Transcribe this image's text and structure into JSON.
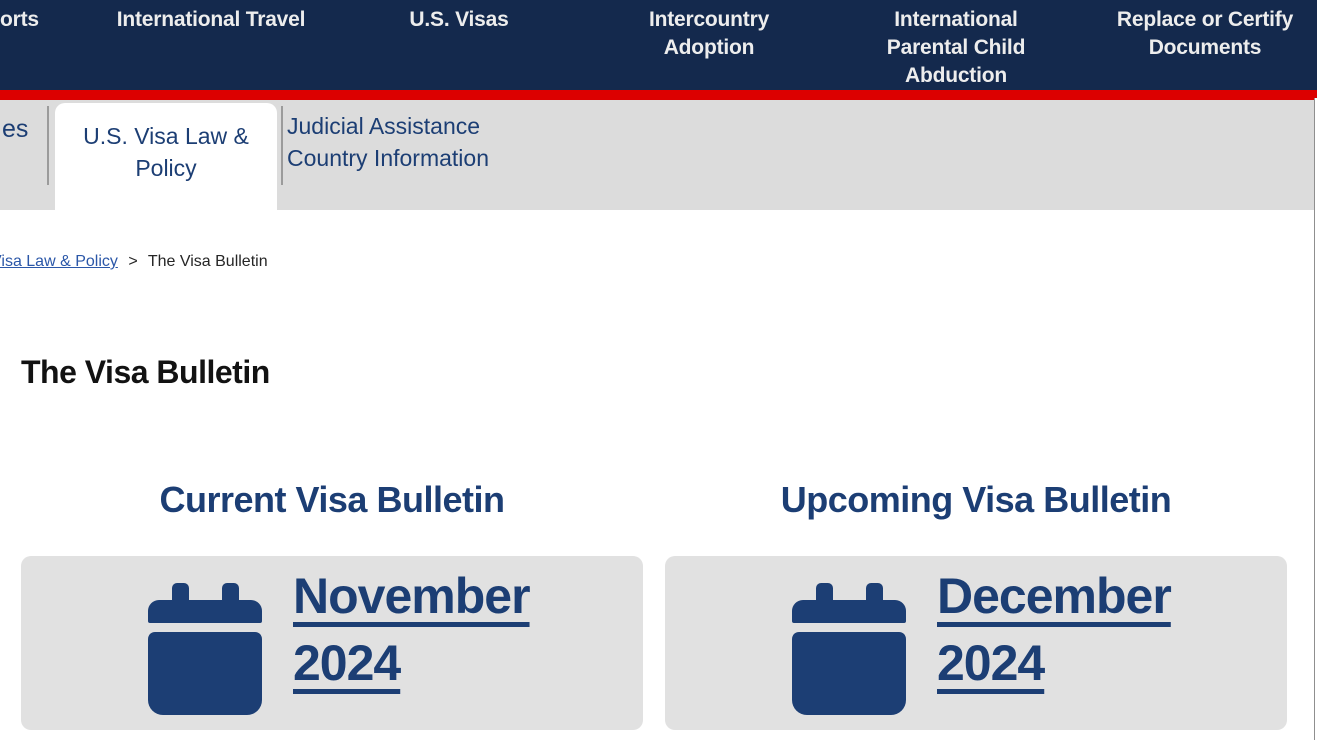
{
  "colors": {
    "navy_bar": "#14294d",
    "red_accent": "#dc0000",
    "secondary_nav_gray": "#dcdcdc",
    "card_gray": "#e1e1e1",
    "navy_text": "#1c3e74",
    "breadcrumb_link_blue": "#2b57a8"
  },
  "top_nav": {
    "items": [
      {
        "label": "orts"
      },
      {
        "label": "International Travel"
      },
      {
        "label": "U.S. Visas"
      },
      {
        "label": "Intercountry Adoption"
      },
      {
        "label": "International Parental Child Abduction"
      },
      {
        "label": "Replace or Certify Documents"
      }
    ]
  },
  "secondary_nav": {
    "partial_left_item": "es",
    "active_tab": "U.S. Visa Law & Policy",
    "right_item": "Judicial Assistance Country Information"
  },
  "breadcrumb": {
    "parent_link": "Visa Law & Policy",
    "separator": ">",
    "current": "The Visa Bulletin"
  },
  "page": {
    "title": "The Visa Bulletin"
  },
  "bulletins": {
    "current": {
      "heading": "Current Visa Bulletin",
      "link_label": "November 2024",
      "icon": "calendar-icon"
    },
    "upcoming": {
      "heading": "Upcoming Visa Bulletin",
      "link_label": "December 2024",
      "icon": "calendar-icon"
    }
  }
}
